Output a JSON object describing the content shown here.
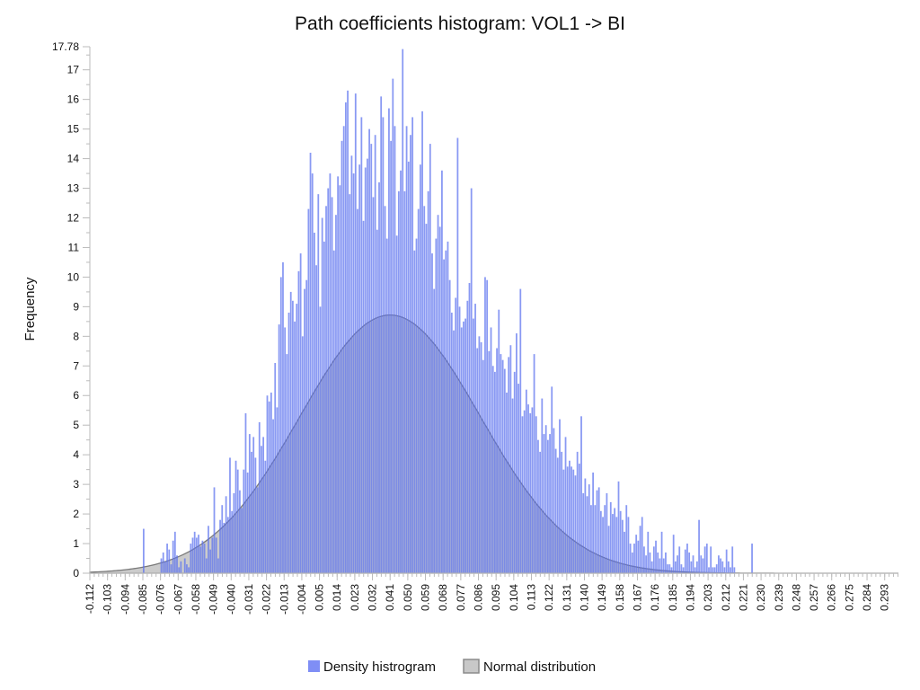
{
  "chart_data": {
    "type": "bar",
    "title": "Path coefficients histogram: VOL1 -> BI",
    "xlabel": "",
    "ylabel": "Frequency",
    "xlim": [
      -0.112,
      0.3
    ],
    "ylim": [
      0,
      17.78
    ],
    "y_ticks": [
      "0",
      "1",
      "2",
      "3",
      "4",
      "5",
      "6",
      "7",
      "8",
      "9",
      "10",
      "11",
      "12",
      "13",
      "14",
      "15",
      "16",
      "17",
      "17.78"
    ],
    "x_ticks": [
      "-0.112",
      "-0.103",
      "-0.094",
      "-0.085",
      "-0.076",
      "-0.067",
      "-0.058",
      "-0.049",
      "-0.040",
      "-0.031",
      "-0.022",
      "-0.013",
      "-0.004",
      "0.005",
      "0.014",
      "0.023",
      "0.032",
      "0.041",
      "0.050",
      "0.059",
      "0.068",
      "0.077",
      "0.086",
      "0.095",
      "0.104",
      "0.113",
      "0.122",
      "0.131",
      "0.140",
      "0.149",
      "0.158",
      "0.167",
      "0.176",
      "0.185",
      "0.194",
      "0.203",
      "0.212",
      "0.221",
      "0.230",
      "0.239",
      "0.248",
      "0.257",
      "0.266",
      "0.275",
      "0.284",
      "0.293"
    ],
    "bin_width": 0.001,
    "series": [
      {
        "name": "Density histrogram",
        "color": "#7f8ef5",
        "bin_start": -0.085,
        "values": [
          1.5,
          0,
          0,
          0,
          0,
          0,
          0,
          0,
          0,
          0.5,
          0.7,
          0.4,
          1.0,
          0.8,
          0.3,
          1.1,
          1.4,
          0.6,
          0.2,
          0.4,
          0,
          0.5,
          0.3,
          0.2,
          1.0,
          1.2,
          1.4,
          1.2,
          1.3,
          0.9,
          1.1,
          1.0,
          0.5,
          1.6,
          0.8,
          1.2,
          2.9,
          1.2,
          0.5,
          1.8,
          2.3,
          1.7,
          2.6,
          1.9,
          3.9,
          2.1,
          2.7,
          3.8,
          3.5,
          2.8,
          2.2,
          3.5,
          5.4,
          3.4,
          4.7,
          4.1,
          4.6,
          3.9,
          2.9,
          5.1,
          4.3,
          4.6,
          3.8,
          6.0,
          5.8,
          6.1,
          5.2,
          7.1,
          5.6,
          8.4,
          10.0,
          10.5,
          8.3,
          7.4,
          8.8,
          9.5,
          9.2,
          8.5,
          9.1,
          10.2,
          10.8,
          8.0,
          9.6,
          9.9,
          12.3,
          14.2,
          13.5,
          11.5,
          10.4,
          12.8,
          9.0,
          12.0,
          11.2,
          12.4,
          13.0,
          13.5,
          12.7,
          10.9,
          12.1,
          13.4,
          13.1,
          14.6,
          15.1,
          15.9,
          16.3,
          12.8,
          14.1,
          13.5,
          16.2,
          12.3,
          13.8,
          15.4,
          11.9,
          13.7,
          14.0,
          15.0,
          14.5,
          12.7,
          14.8,
          11.6,
          13.2,
          16.1,
          15.4,
          12.4,
          11.3,
          15.7,
          14.6,
          16.7,
          15.1,
          11.4,
          12.9,
          13.6,
          17.7,
          12.9,
          15.1,
          13.9,
          14.8,
          15.4,
          10.9,
          11.3,
          12.3,
          13.8,
          15.6,
          12.4,
          11.8,
          12.9,
          14.5,
          10.8,
          9.6,
          11.3,
          12.1,
          11.7,
          13.6,
          10.6,
          10.9,
          11.2,
          9.9,
          8.8,
          8.2,
          9.3,
          14.7,
          9.0,
          8.3,
          8.5,
          8.6,
          9.2,
          9.8,
          13.0,
          8.6,
          9.1,
          7.6,
          8.0,
          7.8,
          7.2,
          10.0,
          9.9,
          7.5,
          8.3,
          7.0,
          6.8,
          7.6,
          8.9,
          7.4,
          7.2,
          6.9,
          6.1,
          7.3,
          7.7,
          5.9,
          6.8,
          8.1,
          6.4,
          9.6,
          5.3,
          5.5,
          6.2,
          5.7,
          5.4,
          5.6,
          7.4,
          5.3,
          4.5,
          4.1,
          5.9,
          4.7,
          5.0,
          4.5,
          4.7,
          6.3,
          4.9,
          4.2,
          3.9,
          5.2,
          4.1,
          3.5,
          4.6,
          3.6,
          3.8,
          3.6,
          3.5,
          3.3,
          4.1,
          3.7,
          5.3,
          2.7,
          3.2,
          2.6,
          3.0,
          2.3,
          3.4,
          2.3,
          2.8,
          2.9,
          2.1,
          1.9,
          2.3,
          2.7,
          1.6,
          2.4,
          2.0,
          2.2,
          1.9,
          3.1,
          2.1,
          1.8,
          1.4,
          2.3,
          1.9,
          1.0,
          0.7,
          1.0,
          1.3,
          1.1,
          1.6,
          1.9,
          0.9,
          0.6,
          1.4,
          0.7,
          0.4,
          0.9,
          1.1,
          0.7,
          0.5,
          1.4,
          0.5,
          0.7,
          0.3,
          0.3,
          0.2,
          1.3,
          0.4,
          0.6,
          0.9,
          0.3,
          0.2,
          0.8,
          1.0,
          0.7,
          0.4,
          0.6,
          0.2,
          0.4,
          1.8,
          0.6,
          0.5,
          0.9,
          1.0,
          0.2,
          0.9,
          0.2,
          0.2,
          0.3,
          0.6,
          0.5,
          0.4,
          0.2,
          0.8,
          0.4,
          0.2,
          0.9,
          0.2,
          0,
          0,
          0,
          0,
          0,
          0,
          0,
          0,
          1.0
        ]
      },
      {
        "name": "Normal distribution",
        "type": "area",
        "color": "#bdbdbd",
        "mean": 0.041,
        "sd": 0.046,
        "peak": 8.72
      }
    ],
    "legend": [
      "Density histrogram",
      "Normal distribution"
    ],
    "legend_position": "bottom-center"
  }
}
